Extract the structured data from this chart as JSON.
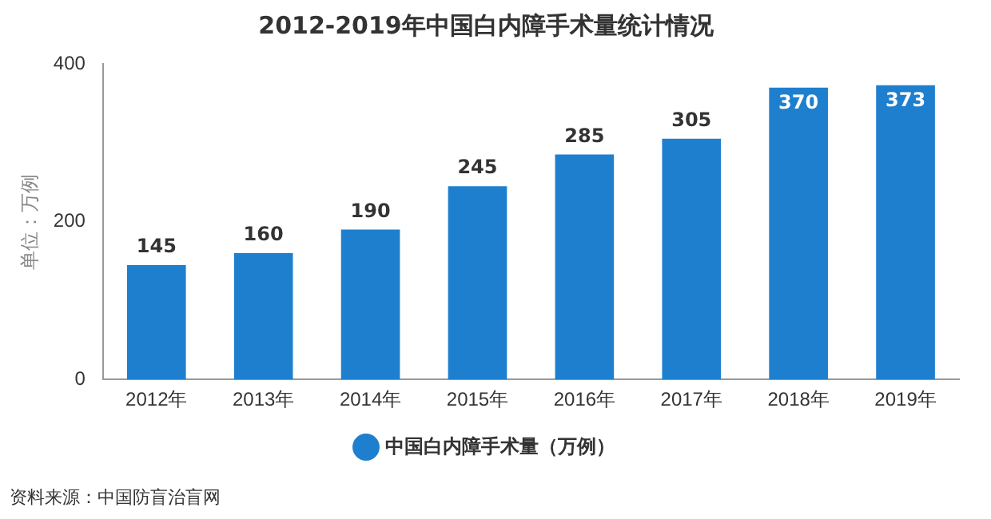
{
  "chart_data": {
    "type": "bar",
    "title": "2012-2019年中国白内障手术量统计情况",
    "ylabel": "单位：万例",
    "categories": [
      "2012年",
      "2013年",
      "2014年",
      "2015年",
      "2016年",
      "2017年",
      "2018年",
      "2019年"
    ],
    "series": [
      {
        "name": "中国白内障手术量（万例）",
        "color": "#1e7fcf",
        "values": [
          145,
          160,
          190,
          245,
          285,
          305,
          370,
          373
        ]
      }
    ],
    "ylim": [
      0,
      400
    ],
    "yticks": [
      0,
      200,
      400
    ],
    "grid": false,
    "legend": "bottom",
    "data_labels": true,
    "annotations": [
      "资料来源：中国防盲治盲网"
    ]
  }
}
